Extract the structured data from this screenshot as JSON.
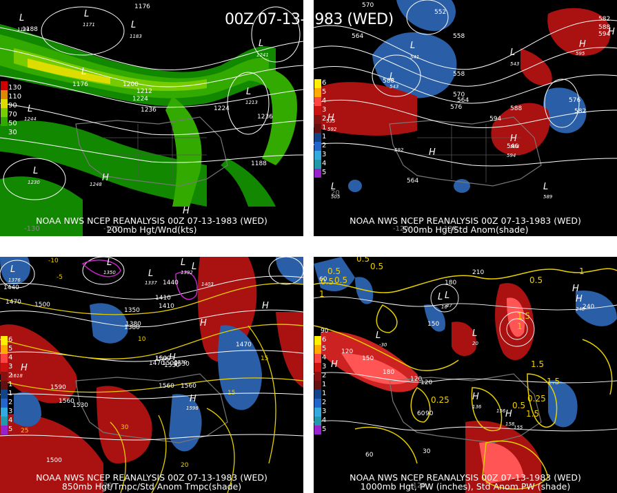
{
  "title": "00Z 07-13-1983 (WED)",
  "panels": [
    {
      "line1": "NOAA NWS NCEP REANALYSIS 00Z 07-13-1983 (WED)",
      "line2": "200mb Hgt/Wnd(kts)",
      "legend": [
        "130",
        "110",
        "90",
        "70",
        "50",
        "30"
      ],
      "legend_colors": [
        "#cc0000",
        "#dd8800",
        "#dddd00",
        "#77cc00",
        "#33aa00",
        "#118800"
      ],
      "contour_labels": [
        "1176",
        "1188",
        "1176",
        "1200",
        "1212",
        "1224",
        "1236",
        "1224",
        "1236",
        "1188"
      ],
      "lows": [
        "1184",
        "1171",
        "1183",
        "1244",
        "1230",
        "1241",
        "1213"
      ],
      "highs": [
        "1248"
      ],
      "lons": [
        "-130",
        "-120"
      ]
    },
    {
      "line1": "NOAA NWS NCEP REANALYSIS 00Z 07-13-1983 (WED)",
      "line2": "500mb Hgt/Std Anom(shade)",
      "legend": [
        "6",
        "5",
        "4",
        "3",
        "2",
        "1",
        "1",
        "2",
        "3",
        "4",
        "5"
      ],
      "contour_labels": [
        "570",
        "552",
        "564",
        "558",
        "558",
        "570",
        "564",
        "576",
        "582",
        "588",
        "594",
        "576",
        "582",
        "588",
        "594",
        "546",
        "564",
        "588"
      ],
      "lows": [
        "543",
        "541",
        "543",
        "505"
      ],
      "highs": [
        "592",
        "594",
        "592",
        "589",
        "594",
        "535",
        "595"
      ],
      "lons": [
        "20",
        "-130",
        "-120"
      ]
    },
    {
      "line1": "NOAA NWS NCEP REANALYSIS 00Z 07-13-1983 (WED)",
      "line2": "850mb Hgt/Tmpc/Std Anom Tmpc(shade)",
      "legend": [
        "6",
        "5",
        "4",
        "3",
        "2",
        "1",
        "1",
        "2",
        "3",
        "4",
        "5"
      ],
      "contour_labels": [
        "1440",
        "1470",
        "1500",
        "1380",
        "1350",
        "1440",
        "1410",
        "1410",
        "1470",
        "1500",
        "1530",
        "1560",
        "1590",
        "1560",
        "1530",
        "1500",
        "1380",
        "1470",
        "1500",
        "1530",
        "1560",
        "-10",
        "-5",
        "10",
        "15",
        "20",
        "25",
        "30",
        "15"
      ],
      "lows": [
        "1376",
        "1350",
        "1337",
        "1392",
        "1403"
      ],
      "highs": [
        "1529",
        "1598",
        "1530",
        "1618"
      ],
      "lons": [
        "-120"
      ]
    },
    {
      "line1": "NOAA NWS NCEP REANALYSIS 00Z 07-13-1983 (WED)",
      "line2": "1000mb Hgt, PW (inches), Std Anom PW (shade)",
      "legend": [
        "6",
        "5",
        "4",
        "3",
        "2",
        "1",
        "1",
        "2",
        "3",
        "4",
        "5"
      ],
      "contour_labels": [
        "0.5",
        "0.5",
        "0.5",
        "0.25",
        "0.5",
        "1",
        "1.5",
        "1",
        "0.5",
        "0.5",
        "0.25",
        "1.5",
        "1.5",
        "1.5",
        "1",
        "0.5",
        "60",
        "90",
        "120",
        "150",
        "180",
        "120",
        "60",
        "90",
        "120",
        "150",
        "180",
        "210",
        "240",
        "30",
        "60"
      ],
      "lows": [
        "-30",
        "16",
        "20",
        "47"
      ],
      "highs": [
        "136",
        "158",
        "155",
        "156",
        "240"
      ],
      "lons": [
        "-120"
      ]
    }
  ],
  "colors": {
    "green_dark": "#118800",
    "green_mid": "#33aa00",
    "green_light": "#77cc00",
    "yellow": "#dddd00",
    "orange": "#dd8800",
    "red": "#cc0000",
    "anom_pos": "#aa1111",
    "anom_neg": "#2a5fa8",
    "contour_white": "#ffffff",
    "contour_yellow": "#e8d000"
  }
}
